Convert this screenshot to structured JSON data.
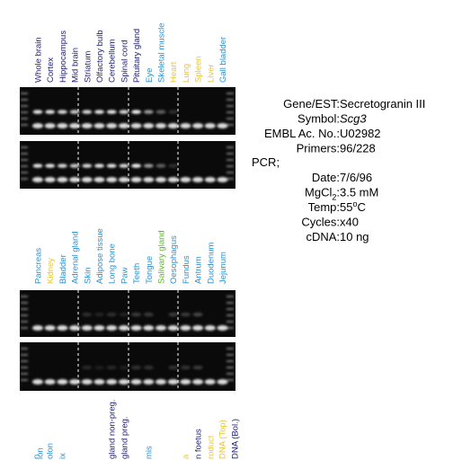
{
  "groups": [
    {
      "lanes": [
        {
          "label": "Whole brain",
          "color": "#1d1d6e"
        },
        {
          "label": "Cortex",
          "color": "#1d1d6e"
        },
        {
          "label": "Hippocampus",
          "color": "#1d1d6e"
        },
        {
          "label": "Mid brain",
          "color": "#1d1d6e"
        },
        {
          "label": "Striatum",
          "color": "#1d1d6e"
        },
        {
          "label": "Olfactory bulb",
          "color": "#1d1d6e"
        },
        {
          "label": "Cerebellum",
          "color": "#1d1d6e"
        },
        {
          "label": "Spinal cord",
          "color": "#1d1d6e"
        },
        {
          "label": "Pituitary gland",
          "color": "#1d1d6e"
        },
        {
          "label": "Eye",
          "color": "#2b8fd0"
        },
        {
          "label": "Skeletal muscle",
          "color": "#2b8fd0"
        },
        {
          "label": "Heart",
          "color": "#e8c43a"
        },
        {
          "label": "Lung",
          "color": "#e8c43a"
        },
        {
          "label": "Spleen",
          "color": "#e8c43a"
        },
        {
          "label": "Liver",
          "color": "#e8c43a"
        },
        {
          "label": "Gall bladder",
          "color": "#2b8fd0"
        }
      ]
    },
    {
      "lanes": [
        {
          "label": "Pancreas",
          "color": "#2b8fd0"
        },
        {
          "label": "Kidney",
          "color": "#e8c43a"
        },
        {
          "label": "Bladder",
          "color": "#2b8fd0"
        },
        {
          "label": "Adrenal gland",
          "color": "#2b8fd0"
        },
        {
          "label": "Skin",
          "color": "#2b8fd0"
        },
        {
          "label": "Adipose tissue",
          "color": "#2b8fd0"
        },
        {
          "label": "Long bone",
          "color": "#2b8fd0"
        },
        {
          "label": "Paw",
          "color": "#2b8fd0"
        },
        {
          "label": "Teeth",
          "color": "#2b8fd0"
        },
        {
          "label": "Tongue",
          "color": "#2b8fd0"
        },
        {
          "label": "Salivary gland",
          "color": "#5ab52a"
        },
        {
          "label": "Oesophagus",
          "color": "#2b8fd0"
        },
        {
          "label": "Fundus",
          "color": "#2b8fd0"
        },
        {
          "label": "Antrum",
          "color": "#2b8fd0"
        },
        {
          "label": "Duodenum",
          "color": "#2b8fd0"
        },
        {
          "label": "Jejunum",
          "color": "#2b8fd0"
        }
      ]
    },
    {
      "lanes": [
        {
          "label": "n",
          "color": "#2b8fd0"
        },
        {
          "label": "lon",
          "color": "#2b8fd0"
        },
        {
          "label": "olon",
          "color": "#2b8fd0"
        },
        {
          "label": "ix",
          "color": "#2b8fd0"
        },
        {
          "label": "gland non-preg.",
          "color": "#1d1d6e"
        },
        {
          "label": "gland preg.",
          "color": "#1d1d6e"
        },
        {
          "label": "mis",
          "color": "#2b8fd0"
        },
        {
          "label": "a",
          "color": "#e8c43a"
        },
        {
          "label": "n foetus",
          "color": "#1d1d6e"
        },
        {
          "label": "roduct",
          "color": "#e8c43a"
        },
        {
          "label": "DNA (Top)",
          "color": "#e8c43a"
        },
        {
          "label": "DNA (Bol.)",
          "color": "#1d1d6e"
        }
      ]
    }
  ],
  "info": {
    "rows": [
      {
        "label": "Gene/EST:",
        "value": "Secretogranin III"
      },
      {
        "label": "Symbol:",
        "value": "Scg3",
        "italic": true
      },
      {
        "label": "EMBL Ac. No.:",
        "value": "U02982"
      },
      {
        "label": "Primers:",
        "value": "96/228"
      }
    ],
    "pcr": "PCR;",
    "pcr_rows": [
      {
        "label": "Date:",
        "value": "7/6/96"
      },
      {
        "label": "MgCl",
        "label_sub": "2",
        "label_end": ":",
        "value": "3.5 mM"
      },
      {
        "label": "Temp:",
        "value": "55",
        "value_sup": "o",
        "value_end": "C"
      },
      {
        "label": "Cycles:",
        "value": "x40"
      },
      {
        "label": "cDNA:",
        "value": "10 ng"
      }
    ]
  }
}
